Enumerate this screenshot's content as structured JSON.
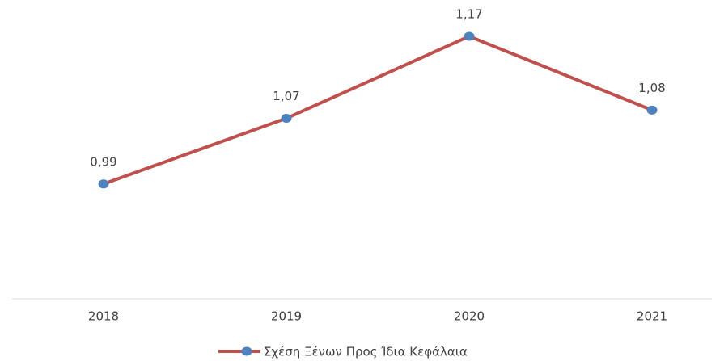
{
  "chart_data": {
    "type": "line",
    "categories": [
      "2018",
      "2019",
      "2020",
      "2021"
    ],
    "series": [
      {
        "name": "Σχέση Ξένων Προς Ίδια Κεφάλαια",
        "color": "#c0504d",
        "marker_color": "#4f81bd",
        "values": [
          0.99,
          1.07,
          1.17,
          1.08
        ],
        "value_labels": [
          "0,99",
          "1,07",
          "1,17",
          "1,08"
        ]
      }
    ],
    "ylim": [
      0.85,
      1.2
    ],
    "legend": "bottom"
  }
}
